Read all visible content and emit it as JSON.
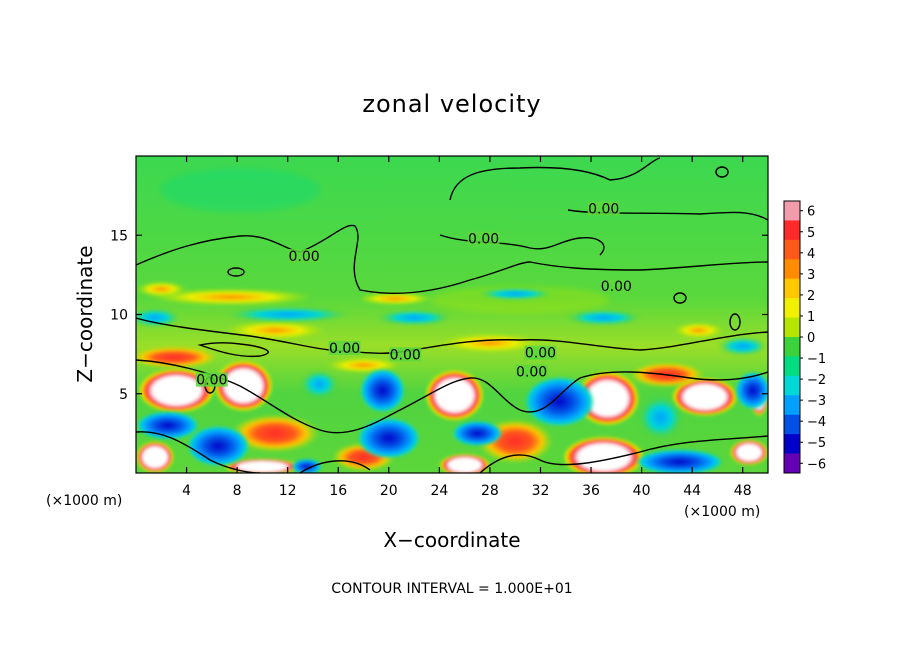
{
  "chart_data": {
    "type": "heatmap",
    "title": "zonal velocity",
    "xlabel": "X−coordinate",
    "ylabel": "Z−coordinate",
    "x_unit_label": "(×1000 m)",
    "y_unit_label": "(×1000 m)",
    "xlim": [
      0,
      50
    ],
    "ylim": [
      0,
      20
    ],
    "x_ticks": [
      4,
      8,
      12,
      16,
      20,
      24,
      28,
      32,
      36,
      40,
      44,
      48
    ],
    "y_ticks": [
      5,
      10,
      15
    ],
    "colorbar": {
      "ticks": [
        "6",
        "5",
        "4",
        "3",
        "2",
        "1",
        "0",
        "−1",
        "−2",
        "−3",
        "−4",
        "−5",
        "−6"
      ],
      "colors": [
        "#f29bab",
        "#ff2a2a",
        "#ff5a1a",
        "#ff8c00",
        "#ffc800",
        "#f0f000",
        "#b4e600",
        "#3cd23c",
        "#00dc82",
        "#00d8d8",
        "#00a0ff",
        "#0050e6",
        "#0000c8",
        "#6400b4"
      ]
    },
    "contour_labels": [
      {
        "text": "0.00",
        "x": 13.3,
        "z": 13.5
      },
      {
        "text": "0.00",
        "x": 27.5,
        "z": 14.6
      },
      {
        "text": "0.00",
        "x": 37.0,
        "z": 16.5
      },
      {
        "text": "0.00",
        "x": 38.0,
        "z": 11.6
      },
      {
        "text": "0.00",
        "x": 16.5,
        "z": 7.7
      },
      {
        "text": "0.00",
        "x": 21.3,
        "z": 7.3
      },
      {
        "text": "0.00",
        "x": 32.0,
        "z": 7.4
      },
      {
        "text": "0.00",
        "x": 31.3,
        "z": 6.2
      },
      {
        "text": "0.00",
        "x": 6.0,
        "z": 5.7
      }
    ],
    "features": [
      {
        "kind": "max",
        "cx": 3.2,
        "cz": 5.2,
        "rx": 3.0,
        "rz": 1.4
      },
      {
        "kind": "max",
        "cx": 8.5,
        "cz": 5.5,
        "rx": 2.3,
        "rz": 1.6
      },
      {
        "kind": "max",
        "cx": 25.2,
        "cz": 4.9,
        "rx": 2.3,
        "rz": 1.6
      },
      {
        "kind": "max",
        "cx": 37.3,
        "cz": 4.7,
        "rx": 2.5,
        "rz": 1.7
      },
      {
        "kind": "max",
        "cx": 45.0,
        "cz": 4.8,
        "rx": 2.6,
        "rz": 1.2
      },
      {
        "kind": "max",
        "cx": 49.3,
        "cz": 4.8,
        "rx": 0.7,
        "rz": 1.2
      },
      {
        "kind": "max",
        "cx": 1.5,
        "cz": 1.0,
        "rx": 1.5,
        "rz": 1.0
      },
      {
        "kind": "max",
        "cx": 26.0,
        "cz": 0.5,
        "rx": 2.0,
        "rz": 0.7
      },
      {
        "kind": "max",
        "cx": 37.0,
        "cz": 1.0,
        "rx": 3.2,
        "rz": 1.3
      },
      {
        "kind": "max",
        "cx": 48.5,
        "cz": 1.3,
        "rx": 1.5,
        "rz": 0.8
      },
      {
        "kind": "max",
        "cx": 10.0,
        "cz": 0.4,
        "rx": 3.0,
        "rz": 0.5
      },
      {
        "kind": "pos",
        "cx": 11.0,
        "cz": 2.5,
        "rx": 3.5,
        "rz": 1.2
      },
      {
        "kind": "pos",
        "cx": 3.0,
        "cz": 7.3,
        "rx": 3.5,
        "rz": 0.7
      },
      {
        "kind": "pos",
        "cx": 30.0,
        "cz": 2.0,
        "rx": 3.0,
        "rz": 1.4
      },
      {
        "kind": "pos",
        "cx": 18.0,
        "cz": 1.0,
        "rx": 2.5,
        "rz": 0.9
      },
      {
        "kind": "pos",
        "cx": 42.0,
        "cz": 6.2,
        "rx": 3.0,
        "rz": 0.8
      },
      {
        "kind": "warm",
        "cx": 7.5,
        "cz": 11.1,
        "rx": 6.5,
        "rz": 0.55
      },
      {
        "kind": "warm",
        "cx": 2.0,
        "cz": 11.6,
        "rx": 2.0,
        "rz": 0.5
      },
      {
        "kind": "warm",
        "cx": 20.5,
        "cz": 11.0,
        "rx": 3.0,
        "rz": 0.4
      },
      {
        "kind": "warm",
        "cx": 11.0,
        "cz": 9.0,
        "rx": 4.0,
        "rz": 0.6
      },
      {
        "kind": "warm",
        "cx": 28.0,
        "cz": 8.2,
        "rx": 4.0,
        "rz": 0.6
      },
      {
        "kind": "warm",
        "cx": 44.5,
        "cz": 9.0,
        "rx": 2.0,
        "rz": 0.5
      },
      {
        "kind": "warm",
        "cx": 18.0,
        "cz": 6.8,
        "rx": 3.0,
        "rz": 0.5
      },
      {
        "kind": "cool",
        "cx": 1.5,
        "cz": 9.8,
        "rx": 2.0,
        "rz": 0.6
      },
      {
        "kind": "cool",
        "cx": 12.0,
        "cz": 10.0,
        "rx": 5.0,
        "rz": 0.5
      },
      {
        "kind": "cool",
        "cx": 22.0,
        "cz": 9.8,
        "rx": 3.0,
        "rz": 0.5
      },
      {
        "kind": "cool",
        "cx": 30.0,
        "cz": 11.3,
        "rx": 3.0,
        "rz": 0.4
      },
      {
        "kind": "cool",
        "cx": 37.0,
        "cz": 9.8,
        "rx": 3.0,
        "rz": 0.5
      },
      {
        "kind": "cool",
        "cx": 48.0,
        "cz": 8.0,
        "rx": 2.0,
        "rz": 0.6
      },
      {
        "kind": "cool",
        "cx": 14.5,
        "cz": 5.6,
        "rx": 1.5,
        "rz": 0.9
      },
      {
        "kind": "cool",
        "cx": 41.5,
        "cz": 3.5,
        "rx": 1.8,
        "rz": 1.4
      },
      {
        "kind": "neg",
        "cx": 19.5,
        "cz": 5.2,
        "rx": 1.8,
        "rz": 1.4
      },
      {
        "kind": "neg",
        "cx": 6.5,
        "cz": 1.7,
        "rx": 2.5,
        "rz": 1.3
      },
      {
        "kind": "neg",
        "cx": 33.5,
        "cz": 4.5,
        "rx": 2.8,
        "rz": 1.6
      },
      {
        "kind": "neg",
        "cx": 20.0,
        "cz": 2.2,
        "rx": 2.5,
        "rz": 1.3
      },
      {
        "kind": "neg",
        "cx": 2.5,
        "cz": 3.0,
        "rx": 2.5,
        "rz": 0.9
      },
      {
        "kind": "neg",
        "cx": 43.0,
        "cz": 0.7,
        "rx": 3.5,
        "rz": 0.8
      },
      {
        "kind": "neg",
        "cx": 27.0,
        "cz": 2.5,
        "rx": 2.0,
        "rz": 0.8
      },
      {
        "kind": "neg",
        "cx": 48.8,
        "cz": 5.2,
        "rx": 1.4,
        "rz": 1.2
      },
      {
        "kind": "neg",
        "cx": 13.5,
        "cz": 0.4,
        "rx": 1.2,
        "rz": 0.5
      }
    ]
  },
  "footer": {
    "contour_interval": "CONTOUR INTERVAL = 1.000E+01"
  }
}
